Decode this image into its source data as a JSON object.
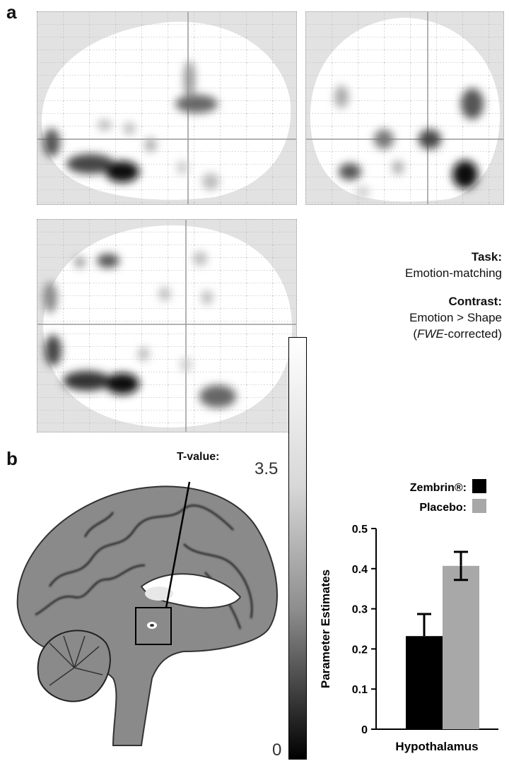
{
  "panel_a_label": "a",
  "panel_b_label": "b",
  "annotation": {
    "task_heading": "Task:",
    "task_value": "Emotion-matching",
    "contrast_heading": "Contrast:",
    "contrast_line1": "Emotion > Shape",
    "contrast_line2_prefix": "(",
    "contrast_line2_italic": "FWE",
    "contrast_line2_suffix": "-corrected)"
  },
  "tvalue_label": "T-value:",
  "colorbar": {
    "max_label": "3.5",
    "min_label": "0"
  },
  "colors": {
    "zembrin": "#000000",
    "placebo": "#a8a8a8",
    "glass_bg": "#e2e2e2"
  },
  "chart_data": {
    "type": "bar",
    "categories": [
      "Hypothalamus"
    ],
    "series": [
      {
        "name": "Zembrin®:",
        "values": [
          0.232
        ],
        "error": [
          0.055
        ]
      },
      {
        "name": "Placebo:",
        "values": [
          0.407
        ],
        "error": [
          0.035
        ]
      }
    ],
    "xlabel": "Hypothalamus",
    "ylabel": "Parameter Estimates",
    "ylim": [
      0,
      0.5
    ],
    "yticks": [
      "0",
      "0.1",
      "0.2",
      "0.3",
      "0.4",
      "0.5"
    ],
    "legend": "top-right"
  }
}
